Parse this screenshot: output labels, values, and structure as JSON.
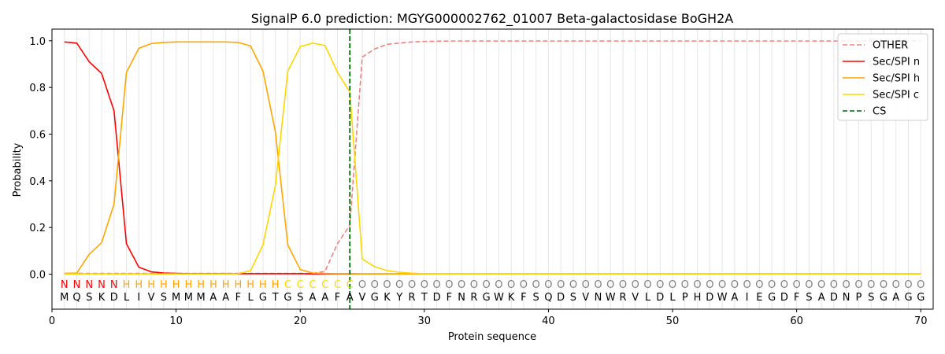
{
  "chart_data": {
    "type": "line",
    "title": "SignalP 6.0 prediction: MGYG000002762_01007 Beta-galactosidase BoGH2A",
    "xlabel": "Protein sequence",
    "ylabel": "Probability",
    "xlim": [
      0,
      71
    ],
    "ylim": [
      -0.15,
      1.05
    ],
    "xticks": [
      0,
      10,
      20,
      30,
      40,
      50,
      60,
      70
    ],
    "yticks": [
      0.0,
      0.2,
      0.4,
      0.6,
      0.8,
      1.0
    ],
    "xtick_labels": [
      "0",
      "10",
      "20",
      "30",
      "40",
      "50",
      "60",
      "70"
    ],
    "ytick_labels": [
      "0.0",
      "0.2",
      "0.4",
      "0.6",
      "0.8",
      "1.0"
    ],
    "grid": "vertical lines at each residue",
    "legend_position": "top-right",
    "sequence": [
      "M",
      "Q",
      "S",
      "K",
      "D",
      "L",
      "I",
      "V",
      "S",
      "M",
      "M",
      "M",
      "A",
      "A",
      "F",
      "L",
      "G",
      "T",
      "G",
      "S",
      "A",
      "A",
      "F",
      "A",
      "V",
      "G",
      "K",
      "Y",
      "R",
      "T",
      "D",
      "F",
      "N",
      "R",
      "G",
      "W",
      "K",
      "F",
      "S",
      "Q",
      "D",
      "S",
      "V",
      "N",
      "W",
      "R",
      "V",
      "L",
      "D",
      "L",
      "P",
      "H",
      "D",
      "W",
      "A",
      "I",
      "E",
      "G",
      "D",
      "F",
      "S",
      "A",
      "D",
      "N",
      "P",
      "S",
      "G",
      "A",
      "G",
      "G"
    ],
    "prediction": [
      "N",
      "N",
      "N",
      "N",
      "N",
      "H",
      "H",
      "H",
      "H",
      "H",
      "H",
      "H",
      "H",
      "H",
      "H",
      "H",
      "H",
      "H",
      "C",
      "C",
      "C",
      "C",
      "C",
      "C",
      "O",
      "O",
      "O",
      "O",
      "O",
      "O",
      "O",
      "O",
      "O",
      "O",
      "O",
      "O",
      "O",
      "O",
      "O",
      "O",
      "O",
      "O",
      "O",
      "O",
      "O",
      "O",
      "O",
      "O",
      "O",
      "O",
      "O",
      "O",
      "O",
      "O",
      "O",
      "O",
      "O",
      "O",
      "O",
      "O",
      "O",
      "O",
      "O",
      "O",
      "O",
      "O",
      "O",
      "O",
      "O",
      "O"
    ],
    "prediction_colors": {
      "N": "#ff0000",
      "H": "#ffa500",
      "C": "#ffd700",
      "O": "#808080"
    },
    "series": [
      {
        "name": "OTHER",
        "color": "#f08080",
        "dash": true,
        "values": [
          0.003,
          0.003,
          0.003,
          0.003,
          0.003,
          0.003,
          0.003,
          0.003,
          0.003,
          0.003,
          0.003,
          0.003,
          0.003,
          0.003,
          0.003,
          0.003,
          0.003,
          0.003,
          0.003,
          0.003,
          0.003,
          0.012,
          0.13,
          0.21,
          0.93,
          0.965,
          0.985,
          0.99,
          0.995,
          0.997,
          0.998,
          0.999,
          0.999,
          0.999,
          0.999,
          0.999,
          0.999,
          0.999,
          0.999,
          0.999,
          0.999,
          0.999,
          0.999,
          0.999,
          0.999,
          0.999,
          0.999,
          0.999,
          0.999,
          0.999,
          0.999,
          0.999,
          0.999,
          0.999,
          0.999,
          0.999,
          0.999,
          0.999,
          0.999,
          0.999,
          0.999,
          0.999,
          0.999,
          0.999,
          0.999,
          0.999,
          0.999,
          0.999,
          0.999,
          0.999
        ]
      },
      {
        "name": "Sec/SPI n",
        "color": "#ff0000",
        "dash": false,
        "values": [
          0.995,
          0.99,
          0.91,
          0.86,
          0.7,
          0.13,
          0.03,
          0.01,
          0.005,
          0.003,
          0.002,
          0.002,
          0.002,
          0.002,
          0.002,
          0.002,
          0.002,
          0.002,
          0.002,
          0.002,
          0.001,
          0.001,
          0.001,
          0.001,
          0.001,
          0.001,
          0.001,
          0.001,
          0.001,
          0.001,
          0.001,
          0.001,
          0.001,
          0.001,
          0.001,
          0.001,
          0.001,
          0.001,
          0.001,
          0.001,
          0.001,
          0.001,
          0.001,
          0.001,
          0.001,
          0.001,
          0.001,
          0.001,
          0.001,
          0.001,
          0.001,
          0.001,
          0.001,
          0.001,
          0.001,
          0.001,
          0.001,
          0.001,
          0.001,
          0.001,
          0.001,
          0.001,
          0.001,
          0.001,
          0.001,
          0.001,
          0.001,
          0.001,
          0.001,
          0.001
        ]
      },
      {
        "name": "Sec/SPI h",
        "color": "#ffa500",
        "dash": false,
        "values": [
          0.003,
          0.005,
          0.085,
          0.135,
          0.3,
          0.865,
          0.968,
          0.988,
          0.993,
          0.995,
          0.995,
          0.995,
          0.995,
          0.995,
          0.993,
          0.978,
          0.87,
          0.61,
          0.125,
          0.02,
          0.005,
          0.003,
          0.002,
          0.002,
          0.001,
          0.001,
          0.001,
          0.001,
          0.001,
          0.001,
          0.001,
          0.001,
          0.001,
          0.001,
          0.001,
          0.001,
          0.001,
          0.001,
          0.001,
          0.001,
          0.001,
          0.001,
          0.001,
          0.001,
          0.001,
          0.001,
          0.001,
          0.001,
          0.001,
          0.001,
          0.001,
          0.001,
          0.001,
          0.001,
          0.001,
          0.001,
          0.001,
          0.001,
          0.001,
          0.001,
          0.001,
          0.001,
          0.001,
          0.001,
          0.001,
          0.001,
          0.001,
          0.001,
          0.001,
          0.001
        ]
      },
      {
        "name": "Sec/SPI c",
        "color": "#ffd700",
        "dash": false,
        "values": [
          0.001,
          0.001,
          0.001,
          0.001,
          0.001,
          0.001,
          0.001,
          0.001,
          0.001,
          0.001,
          0.001,
          0.001,
          0.001,
          0.001,
          0.002,
          0.015,
          0.125,
          0.38,
          0.87,
          0.975,
          0.99,
          0.98,
          0.865,
          0.78,
          0.065,
          0.032,
          0.015,
          0.008,
          0.004,
          0.002,
          0.001,
          0.001,
          0.001,
          0.001,
          0.001,
          0.001,
          0.001,
          0.001,
          0.001,
          0.001,
          0.001,
          0.001,
          0.001,
          0.001,
          0.001,
          0.001,
          0.001,
          0.001,
          0.001,
          0.001,
          0.001,
          0.001,
          0.001,
          0.001,
          0.001,
          0.001,
          0.001,
          0.001,
          0.001,
          0.001,
          0.001,
          0.001,
          0.001,
          0.001,
          0.001,
          0.001,
          0.001,
          0.001,
          0.001,
          0.001
        ]
      },
      {
        "name": "CS",
        "color": "#006400",
        "dash": true,
        "vline_x": 24
      }
    ]
  }
}
